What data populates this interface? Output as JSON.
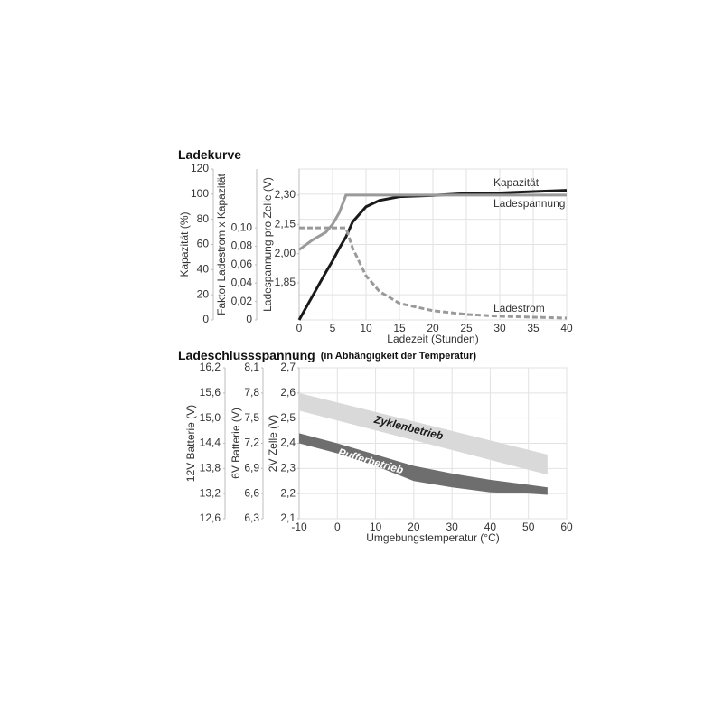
{
  "chart_data": [
    {
      "type": "line",
      "title": "Ladekurve",
      "xlabel": "Ladezeit (Stunden)",
      "x": [
        0,
        2,
        4,
        5,
        6,
        7,
        8,
        10,
        12,
        15,
        20,
        25,
        30,
        35,
        40
      ],
      "xlim": [
        0,
        40
      ],
      "xticks": [
        0,
        5,
        10,
        15,
        20,
        25,
        30,
        35,
        40
      ],
      "ylabel": "Kapazität (%)",
      "ylim": [
        0,
        120
      ],
      "yticks": [
        0,
        20,
        40,
        60,
        80,
        100,
        120
      ],
      "y2label": "Faktor Ladestrom x Kapazität",
      "y2lim": [
        0,
        0.164
      ],
      "y2ticks": [
        0,
        {
          "value": 0.02,
          "label": "0,02"
        },
        {
          "value": 0.04,
          "label": "0,04"
        },
        {
          "value": 0.06,
          "label": "0,06"
        },
        {
          "value": 0.08,
          "label": "0,08"
        },
        {
          "value": 0.1,
          "label": "0,10"
        }
      ],
      "y3label": "Ladespannung pro Zelle (V)",
      "y3lim": [
        1.66,
        2.434
      ],
      "y3ticks": [
        {
          "value": 1.85,
          "label": "1,85"
        },
        {
          "value": 2.0,
          "label": "2,00"
        },
        {
          "value": 2.15,
          "label": "2,15"
        },
        {
          "value": 2.3,
          "label": "2,30"
        }
      ],
      "grid": true,
      "series": [
        {
          "name": "Kapazität",
          "color": "#1a1a1a",
          "axis": "y",
          "line_style": "solid",
          "values": [
            0,
            19,
            38,
            47,
            57,
            66,
            78,
            90,
            95,
            98,
            99,
            100.5,
            101,
            102,
            103
          ]
        },
        {
          "name": "Ladespannung",
          "color": "#9a9a9a",
          "axis": "y3",
          "line_style": "solid",
          "values": [
            2.02,
            2.07,
            2.11,
            2.15,
            2.21,
            2.3,
            2.3,
            2.3,
            2.3,
            2.3,
            2.3,
            2.3,
            2.3,
            2.3,
            2.3
          ]
        },
        {
          "name": "Ladestrom",
          "color": "#9a9a9a",
          "axis": "y2",
          "line_style": "dashed",
          "values": [
            0.1,
            0.1,
            0.1,
            0.1,
            0.1,
            0.1,
            0.078,
            0.048,
            0.031,
            0.018,
            0.01,
            0.006,
            0.004,
            0.003,
            0.002
          ]
        }
      ]
    },
    {
      "type": "band",
      "title": "Ladeschlussspannung",
      "subtitle": "(in Abhängigkeit der Temperatur)",
      "xlabel": "Umgebungstemperatur (°C)",
      "xlim": [
        -10,
        60
      ],
      "xticks": [
        -10,
        0,
        10,
        20,
        30,
        40,
        50,
        60
      ],
      "ylabel": "2V Zelle (V)",
      "ylim": [
        2.1,
        2.7
      ],
      "yticks": [
        {
          "value": 2.1,
          "label": "2,1"
        },
        {
          "value": 2.2,
          "label": "2,2"
        },
        {
          "value": 2.3,
          "label": "2,3"
        },
        {
          "value": 2.4,
          "label": "2,4"
        },
        {
          "value": 2.5,
          "label": "2,5"
        },
        {
          "value": 2.6,
          "label": "2,6"
        },
        {
          "value": 2.7,
          "label": "2,7"
        }
      ],
      "y2label": "12V Batterie (V)",
      "y2lim": [
        12.6,
        16.2
      ],
      "y2ticks": [
        {
          "value": 12.6,
          "label": "12,6"
        },
        {
          "value": 13.2,
          "label": "13,2"
        },
        {
          "value": 13.8,
          "label": "13,8"
        },
        {
          "value": 14.4,
          "label": "14,4"
        },
        {
          "value": 15.0,
          "label": "15,0"
        },
        {
          "value": 15.6,
          "label": "15,6"
        },
        {
          "value": 16.2,
          "label": "16,2"
        }
      ],
      "y3label": "6V Batterie (V)",
      "y3lim": [
        6.3,
        8.1
      ],
      "y3ticks": [
        {
          "value": 6.3,
          "label": "6,3"
        },
        {
          "value": 6.6,
          "label": "6,6"
        },
        {
          "value": 6.9,
          "label": "6,9"
        },
        {
          "value": 7.2,
          "label": "7,2"
        },
        {
          "value": 7.5,
          "label": "7,5"
        },
        {
          "value": 7.8,
          "label": "7,8"
        },
        {
          "value": 8.1,
          "label": "8,1"
        }
      ],
      "grid": true,
      "series": [
        {
          "name": "Zyklenbetrieb",
          "color": "#d9d9d9",
          "text_color": "#1a1a1a",
          "x": [
            -10,
            55
          ],
          "upper": [
            2.6,
            2.355
          ],
          "lower": [
            2.53,
            2.275
          ]
        },
        {
          "name": "Pufferbetrieb",
          "color": "#6e6e6e",
          "text_color": "#ffffff",
          "x": [
            -10,
            0,
            10,
            20,
            30,
            40,
            50,
            55
          ],
          "upper": [
            2.44,
            2.4,
            2.355,
            2.31,
            2.28,
            2.255,
            2.235,
            2.225
          ],
          "lower": [
            2.4,
            2.36,
            2.31,
            2.25,
            2.225,
            2.205,
            2.2,
            2.195
          ]
        }
      ]
    }
  ]
}
